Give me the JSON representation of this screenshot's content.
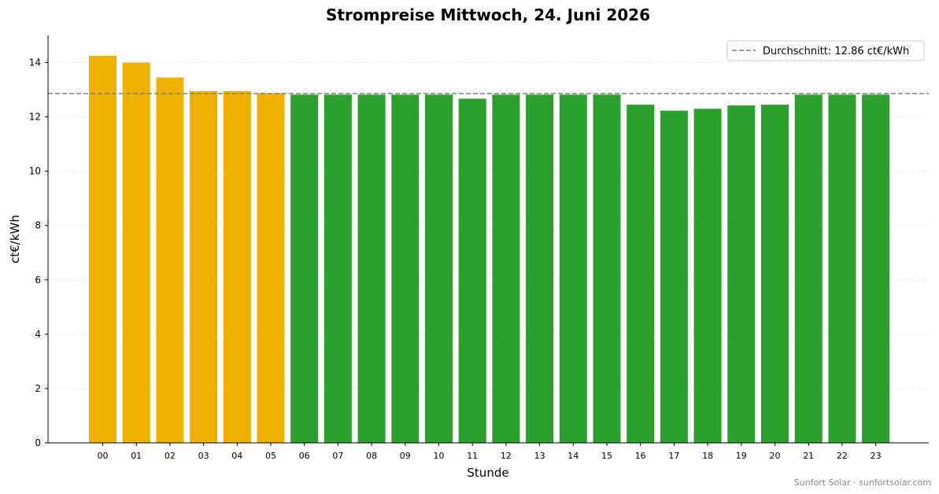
{
  "chart_data": {
    "type": "bar",
    "title": "Strompreise Mittwoch, 24. Juni 2026",
    "xlabel": "Stunde",
    "ylabel": "ct€/kWh",
    "ylim": [
      0,
      15
    ],
    "yticks": [
      0,
      2,
      4,
      6,
      8,
      10,
      12,
      14
    ],
    "grid": "horizontal dotted",
    "legend_position": "top-right",
    "categories": [
      "00",
      "01",
      "02",
      "03",
      "04",
      "05",
      "06",
      "07",
      "08",
      "09",
      "10",
      "11",
      "12",
      "13",
      "14",
      "15",
      "16",
      "17",
      "18",
      "19",
      "20",
      "21",
      "22",
      "23"
    ],
    "values": [
      14.25,
      14.0,
      13.45,
      12.95,
      12.95,
      12.87,
      12.82,
      12.82,
      12.82,
      12.82,
      12.82,
      12.67,
      12.82,
      12.82,
      12.82,
      12.82,
      12.45,
      12.23,
      12.3,
      12.42,
      12.45,
      12.82,
      12.82,
      12.82
    ],
    "bar_colors": [
      "#f0b000",
      "#f0b000",
      "#f0b000",
      "#f0b000",
      "#f0b000",
      "#f0b000",
      "#2ca02c",
      "#2ca02c",
      "#2ca02c",
      "#2ca02c",
      "#2ca02c",
      "#2ca02c",
      "#2ca02c",
      "#2ca02c",
      "#2ca02c",
      "#2ca02c",
      "#2ca02c",
      "#2ca02c",
      "#2ca02c",
      "#2ca02c",
      "#2ca02c",
      "#2ca02c",
      "#2ca02c",
      "#2ca02c"
    ],
    "average": {
      "value": 12.86,
      "label": "Durchschnitt: 12.86 ct€/kWh",
      "color": "#808080"
    }
  },
  "footer": "Sunfort Solar · sunfortsolar.com"
}
